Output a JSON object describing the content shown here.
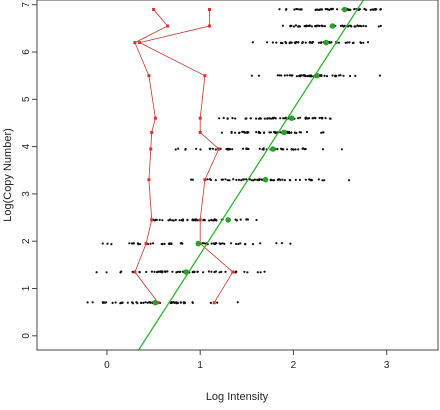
{
  "chart_data": {
    "type": "scatter",
    "xlabel": "Log Intensity",
    "ylabel": "Log(Copy Number)",
    "xlim": [
      -0.75,
      3.55
    ],
    "ylim": [
      -0.3,
      7.1
    ],
    "x_ticks": [
      0,
      1,
      2,
      3
    ],
    "y_ticks": [
      0,
      1,
      2,
      3,
      4,
      5,
      6,
      7
    ],
    "colors": {
      "points": "#111111",
      "means": "#2ca02c",
      "fit_line": "#2db52d",
      "spread_line": "#c0392b",
      "spread_points": "#e0302a"
    },
    "series": [
      {
        "levels": [
          {
            "y": 0.7,
            "x_from": -0.6,
            "x_to": 1.5
          },
          {
            "y": 1.35,
            "x_from": -0.45,
            "x_to": 2.1
          },
          {
            "y": 1.95,
            "x_from": -0.45,
            "x_to": 2.3
          },
          {
            "y": 2.45,
            "x_from": 0.1,
            "x_to": 2.0
          },
          {
            "y": 3.3,
            "x_from": 0.55,
            "x_to": 2.8
          },
          {
            "y": 3.95,
            "x_from": 0.45,
            "x_to": 2.7
          },
          {
            "y": 4.3,
            "x_from": 1.05,
            "x_to": 2.55
          },
          {
            "y": 4.6,
            "x_from": 1.05,
            "x_to": 2.75
          },
          {
            "y": 5.5,
            "x_from": 1.35,
            "x_to": 3.05
          },
          {
            "y": 6.2,
            "x_from": 1.35,
            "x_to": 3.15
          },
          {
            "y": 6.55,
            "x_from": 1.65,
            "x_to": 3.1
          },
          {
            "y": 6.9,
            "x_from": 1.6,
            "x_to": 3.3
          }
        ]
      },
      {
        "points": [
          {
            "x": 0.52,
            "y": 0.7
          },
          {
            "x": 0.85,
            "y": 1.35
          },
          {
            "x": 0.98,
            "y": 1.95
          },
          {
            "x": 1.3,
            "y": 2.45
          },
          {
            "x": 1.7,
            "y": 3.3
          },
          {
            "x": 1.78,
            "y": 3.95
          },
          {
            "x": 1.9,
            "y": 4.3
          },
          {
            "x": 1.98,
            "y": 4.6
          },
          {
            "x": 2.25,
            "y": 5.5
          },
          {
            "x": 2.35,
            "y": 6.2
          },
          {
            "x": 2.42,
            "y": 6.55
          },
          {
            "x": 2.55,
            "y": 6.9
          }
        ]
      },
      {
        "points": [
          {
            "x": 0.34,
            "y": -0.3
          },
          {
            "x": 2.75,
            "y": 7.1
          }
        ]
      },
      {
        "points": [
          {
            "x": 0.55,
            "y": 0.7
          },
          {
            "x": 0.3,
            "y": 1.35
          },
          {
            "x": 0.42,
            "y": 1.95
          },
          {
            "x": 0.48,
            "y": 2.45
          },
          {
            "x": 0.45,
            "y": 3.3
          },
          {
            "x": 0.47,
            "y": 3.95
          },
          {
            "x": 0.48,
            "y": 4.3
          },
          {
            "x": 0.52,
            "y": 4.6
          },
          {
            "x": 0.45,
            "y": 5.5
          },
          {
            "x": 0.3,
            "y": 6.2
          },
          {
            "x": 0.65,
            "y": 6.55
          },
          {
            "x": 0.5,
            "y": 6.9
          }
        ]
      },
      {
        "points": [
          {
            "x": 1.15,
            "y": 0.7
          },
          {
            "x": 1.35,
            "y": 1.35
          },
          {
            "x": 1.0,
            "y": 1.95
          },
          {
            "x": 1.0,
            "y": 2.45
          },
          {
            "x": 1.05,
            "y": 3.3
          },
          {
            "x": 1.2,
            "y": 3.95
          },
          {
            "x": 1.0,
            "y": 4.3
          },
          {
            "x": 1.0,
            "y": 4.6
          },
          {
            "x": 1.05,
            "y": 5.5
          },
          {
            "x": 0.35,
            "y": 6.2
          },
          {
            "x": 1.1,
            "y": 6.55
          },
          {
            "x": 1.1,
            "y": 6.9
          }
        ]
      }
    ]
  }
}
